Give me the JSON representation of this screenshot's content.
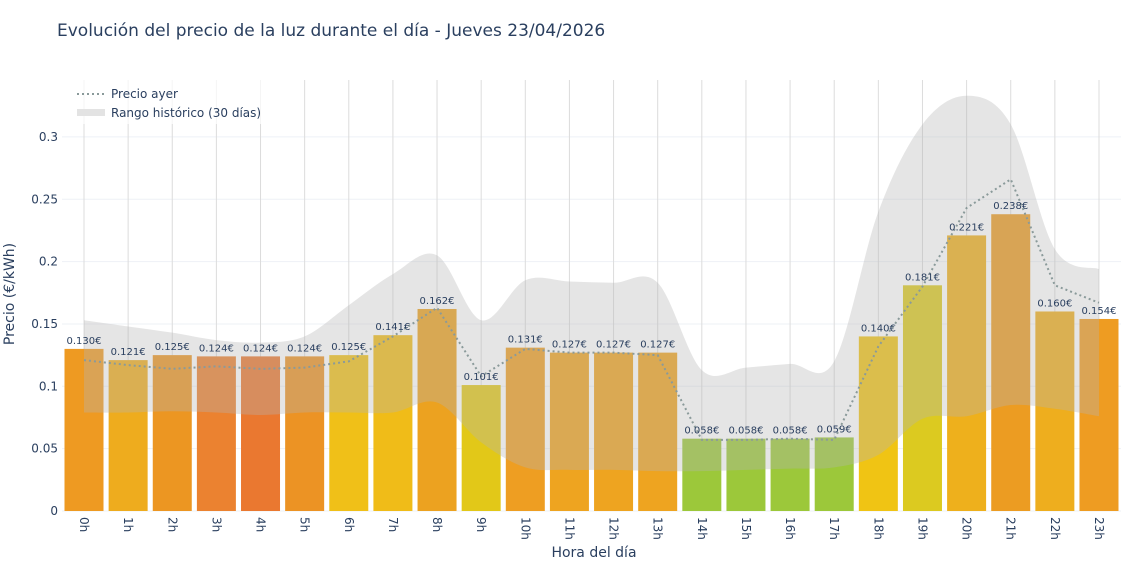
{
  "title": "Evolución del precio de la luz durante el día - Jueves 23/04/2026",
  "chart_data": {
    "type": "bar",
    "title": "Evolución del precio de la luz durante el día - Jueves 23/04/2026",
    "xlabel": "Hora del día",
    "ylabel": "Precio (€/kWh)",
    "ylim": [
      0,
      0.345
    ],
    "yticks": [
      "0",
      "0.05",
      "0.1",
      "0.15",
      "0.2",
      "0.25",
      "0.3"
    ],
    "grid": true,
    "legend_position": "top-left",
    "categories": [
      "0h",
      "1h",
      "2h",
      "3h",
      "4h",
      "5h",
      "6h",
      "7h",
      "8h",
      "9h",
      "10h",
      "11h",
      "12h",
      "13h",
      "14h",
      "15h",
      "16h",
      "17h",
      "18h",
      "19h",
      "20h",
      "21h",
      "22h",
      "23h"
    ],
    "values": [
      0.13,
      0.121,
      0.125,
      0.124,
      0.124,
      0.124,
      0.125,
      0.141,
      0.162,
      0.101,
      0.131,
      0.127,
      0.127,
      0.127,
      0.058,
      0.058,
      0.058,
      0.059,
      0.14,
      0.181,
      0.221,
      0.238,
      0.16,
      0.154
    ],
    "labels": [
      "0.130€",
      "0.121€",
      "0.125€",
      "0.124€",
      "0.124€",
      "0.124€",
      "0.125€",
      "0.141€",
      "0.162€",
      "0.101€",
      "0.131€",
      "0.127€",
      "0.127€",
      "0.127€",
      "0.058€",
      "0.058€",
      "0.058€",
      "0.059€",
      "0.140€",
      "0.181€",
      "0.221€",
      "0.238€",
      "0.160€",
      "0.154€"
    ],
    "bar_colors": [
      "#ee9a22",
      "#eeac1e",
      "#ec9622",
      "#eb8230",
      "#ea7830",
      "#ec9324",
      "#f0c018",
      "#f0bc18",
      "#eca220",
      "#e2c818",
      "#ee9e22",
      "#eea420",
      "#eea420",
      "#eea420",
      "#9cc83a",
      "#9cc83a",
      "#9cc83a",
      "#9cc83a",
      "#f0c414",
      "#dcca20",
      "#eeb01c",
      "#ec9c22",
      "#eeae1e",
      "#ee9c22"
    ],
    "series": [
      {
        "name": "Precio ayer",
        "type": "line",
        "style": "dotted",
        "color": "#8a9a9a",
        "values": [
          0.121,
          0.117,
          0.114,
          0.116,
          0.114,
          0.115,
          0.12,
          0.14,
          0.163,
          0.108,
          0.13,
          0.127,
          0.127,
          0.125,
          0.057,
          0.057,
          0.058,
          0.057,
          0.132,
          0.18,
          0.243,
          0.266,
          0.181,
          0.167
        ]
      },
      {
        "name": "Rango histórico (30 días)",
        "type": "band",
        "color": "#d8d8d8",
        "upper": [
          0.153,
          0.148,
          0.143,
          0.137,
          0.135,
          0.14,
          0.165,
          0.19,
          0.205,
          0.153,
          0.185,
          0.184,
          0.183,
          0.183,
          0.113,
          0.115,
          0.118,
          0.12,
          0.24,
          0.31,
          0.333,
          0.31,
          0.21,
          0.194
        ],
        "lower": [
          0.079,
          0.079,
          0.08,
          0.079,
          0.077,
          0.079,
          0.079,
          0.079,
          0.087,
          0.055,
          0.035,
          0.033,
          0.033,
          0.032,
          0.032,
          0.033,
          0.034,
          0.035,
          0.045,
          0.074,
          0.076,
          0.085,
          0.082,
          0.076
        ]
      }
    ]
  }
}
